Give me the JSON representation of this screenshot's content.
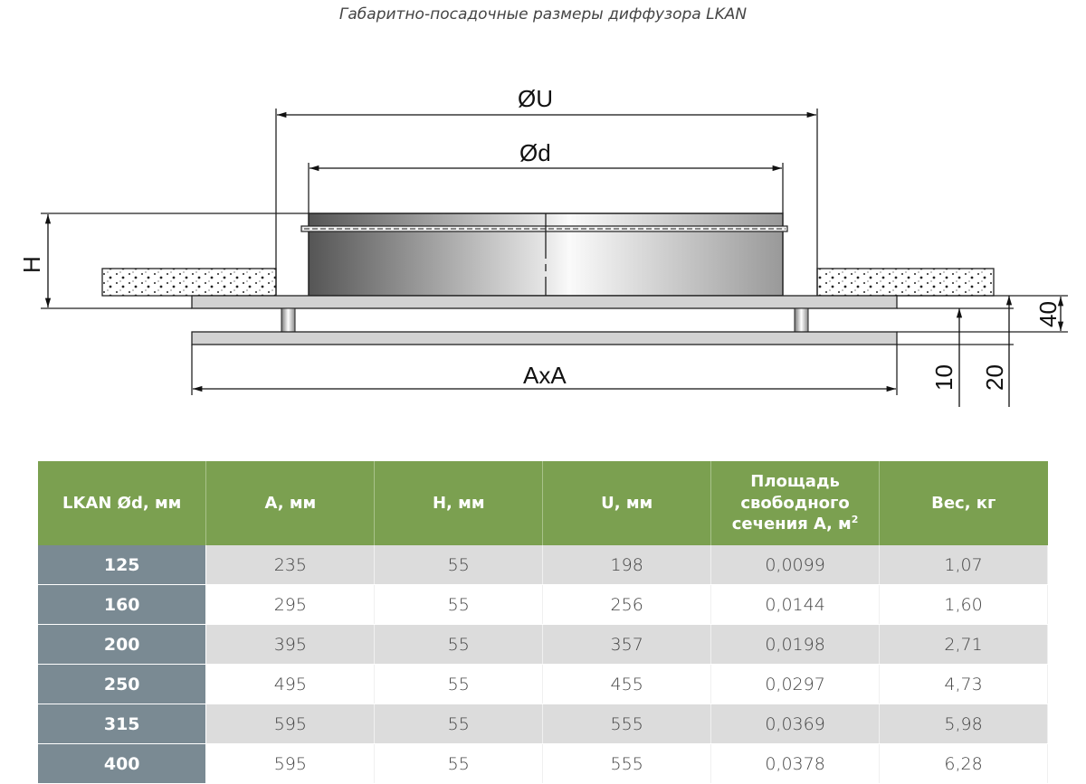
{
  "title": "Габаритно-посадочные размеры диффузора LKAN",
  "drawing": {
    "labels": {
      "U": "ØU",
      "d": "Ød",
      "H": "H",
      "AxA": "AxA",
      "dim40": "40",
      "dim10": "10",
      "dim20": "20"
    }
  },
  "table": {
    "headers": [
      "LKAN Ød, мм",
      "A, мм",
      "H, мм",
      "U, мм",
      "Площадь свободного сечения А, м",
      "Вес, кг"
    ],
    "area_sup": "2",
    "rows": [
      [
        "125",
        "235",
        "55",
        "198",
        "0,0099",
        "1,07"
      ],
      [
        "160",
        "295",
        "55",
        "256",
        "0,0144",
        "1,60"
      ],
      [
        "200",
        "395",
        "55",
        "357",
        "0,0198",
        "2,71"
      ],
      [
        "250",
        "495",
        "55",
        "455",
        "0,0297",
        "4,73"
      ],
      [
        "315",
        "595",
        "55",
        "555",
        "0,0369",
        "5,98"
      ],
      [
        "400",
        "595",
        "55",
        "555",
        "0,0378",
        "6,28"
      ]
    ]
  },
  "colors": {
    "header": "#7ba050",
    "first_col": "#7a8a93",
    "row_alt": "#dcdcdc"
  }
}
